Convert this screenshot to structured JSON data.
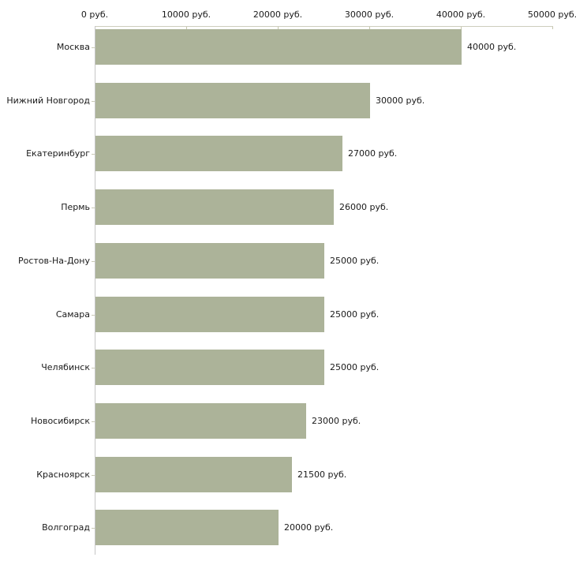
{
  "chart_data": {
    "type": "bar",
    "orientation": "horizontal",
    "title": "",
    "xlabel": "",
    "ylabel": "",
    "categories": [
      "Москва",
      "Нижний Новгород",
      "Екатеринбург",
      "Пермь",
      "Ростов-На-Дону",
      "Самара",
      "Челябинск",
      "Новосибирск",
      "Красноярск",
      "Волгоград"
    ],
    "values": [
      40000,
      30000,
      27000,
      26000,
      25000,
      25000,
      25000,
      23000,
      21500,
      20000
    ],
    "value_labels": [
      "40000 руб.",
      "30000 руб.",
      "27000 руб.",
      "26000 руб.",
      "25000 руб.",
      "25000 руб.",
      "25000 руб.",
      "23000 руб.",
      "21500 руб.",
      "20000 руб."
    ],
    "x_tick_labels": [
      "0 руб.",
      "10000 руб.",
      "20000 руб.",
      "30000 руб.",
      "40000 руб.",
      "50000 руб."
    ],
    "xlim": [
      0,
      50000
    ],
    "grid": false,
    "legend": "none",
    "colors": {
      "bar": "#acb399",
      "x_axis_line": "#cdcdbd",
      "y_axis_line": "#c6c6c6",
      "tick": "#c5c5ab",
      "text": "#1a1a1a",
      "background": "#ffffff"
    }
  }
}
